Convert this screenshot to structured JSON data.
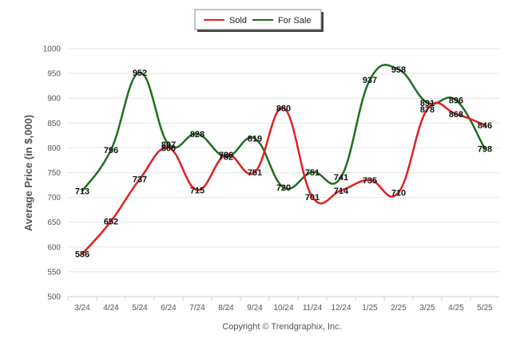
{
  "chart_data": {
    "type": "line",
    "categories": [
      "3/24",
      "4/24",
      "5/24",
      "6/24",
      "7/24",
      "8/24",
      "9/24",
      "10/24",
      "11/24",
      "12/24",
      "1/25",
      "2/25",
      "3/25",
      "4/25",
      "5/25"
    ],
    "series": [
      {
        "name": "Sold",
        "color": "#e02020",
        "values": [
          586,
          652,
          737,
          800,
          715,
          786,
          751,
          880,
          701,
          714,
          735,
          710,
          878,
          868,
          846
        ]
      },
      {
        "name": "For Sale",
        "color": "#1e6e1e",
        "values": [
          713,
          796,
          952,
          807,
          828,
          782,
          819,
          720,
          751,
          741,
          937,
          958,
          891,
          896,
          798
        ]
      }
    ],
    "ylabel": "Average Price (in $,000)",
    "ylim": [
      500,
      1000
    ],
    "yticks": [
      500,
      550,
      600,
      650,
      700,
      750,
      800,
      850,
      900,
      950,
      1000
    ],
    "grid": true,
    "legend_position": "top"
  },
  "footer": "Copyright © Trendgraphix, Inc."
}
